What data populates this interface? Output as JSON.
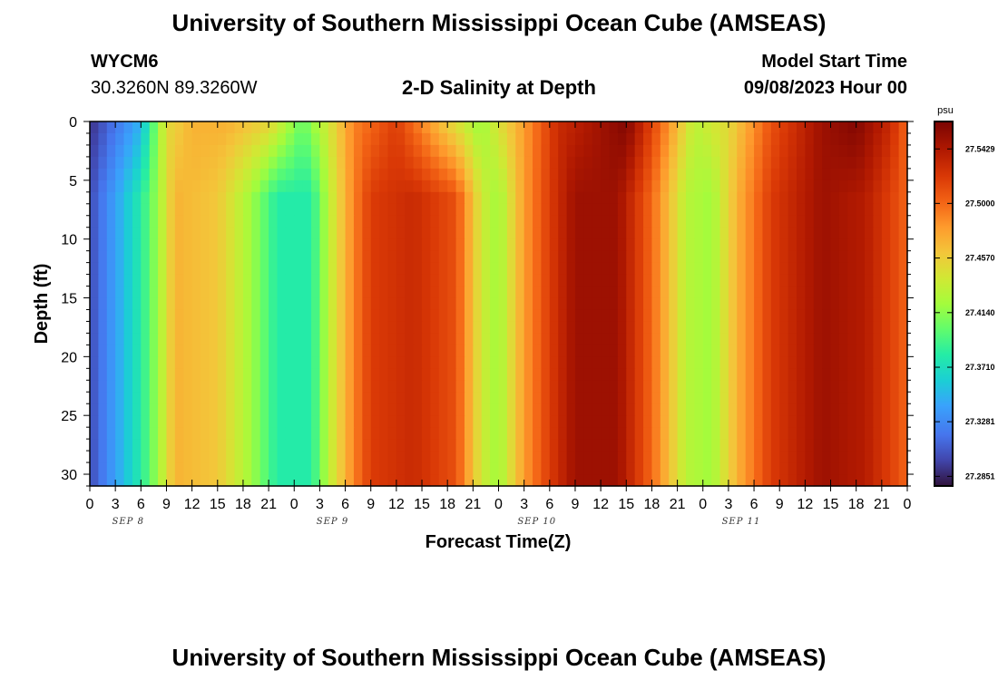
{
  "header": {
    "title": "University of Southern Mississippi Ocean Cube (AMSEAS)",
    "station_id": "WYCM6",
    "coordinates": "30.3260N  89.3260W",
    "model_start_label": "Model Start Time",
    "model_start_value": "09/08/2023 Hour 00"
  },
  "footer": {
    "title": "University of Southern Mississippi Ocean Cube (AMSEAS)"
  },
  "chart_data": {
    "type": "heatmap",
    "title": "2-D Salinity at Depth",
    "xlabel": "Forecast Time(Z)",
    "ylabel": "Depth (ft)",
    "x_ticks": [
      "0",
      "3",
      "6",
      "9",
      "12",
      "15",
      "18",
      "21",
      "0",
      "3",
      "6",
      "9",
      "12",
      "15",
      "18",
      "21",
      "0",
      "3",
      "6",
      "9",
      "12",
      "15",
      "18",
      "21",
      "0",
      "3",
      "6",
      "9",
      "12",
      "15",
      "18",
      "21",
      "0"
    ],
    "day_labels": [
      "SEP 8",
      "SEP 9",
      "SEP 10",
      "SEP 11"
    ],
    "xlim_hours": [
      0,
      96
    ],
    "y_ticks": [
      0,
      5,
      10,
      15,
      20,
      25,
      30
    ],
    "ylim": [
      0,
      31
    ],
    "y_inverted": true,
    "colorbar": {
      "unit": "psu",
      "tick_labels": [
        "27.5429",
        "27.5000",
        "27.4570",
        "27.4140",
        "27.3710",
        "27.3281",
        "27.2851"
      ],
      "range": [
        27.2775,
        27.5645
      ]
    },
    "surface_profile": [
      {
        "hour": 0,
        "value": 27.29
      },
      {
        "hour": 6,
        "value": 27.35
      },
      {
        "hour": 9,
        "value": 27.45
      },
      {
        "hour": 12,
        "value": 27.47
      },
      {
        "hour": 16,
        "value": 27.47
      },
      {
        "hour": 21,
        "value": 27.45
      },
      {
        "hour": 25,
        "value": 27.4
      },
      {
        "hour": 28,
        "value": 27.44
      },
      {
        "hour": 31,
        "value": 27.49
      },
      {
        "hour": 36,
        "value": 27.52
      },
      {
        "hour": 42,
        "value": 27.46
      },
      {
        "hour": 46,
        "value": 27.42
      },
      {
        "hour": 51,
        "value": 27.48
      },
      {
        "hour": 55,
        "value": 27.53
      },
      {
        "hour": 63,
        "value": 27.56
      },
      {
        "hour": 67,
        "value": 27.5
      },
      {
        "hour": 71,
        "value": 27.43
      },
      {
        "hour": 75,
        "value": 27.45
      },
      {
        "hour": 80,
        "value": 27.51
      },
      {
        "hour": 86,
        "value": 27.55
      },
      {
        "hour": 90,
        "value": 27.56
      },
      {
        "hour": 94,
        "value": 27.53
      },
      {
        "hour": 96,
        "value": 27.5
      }
    ],
    "deep_profile": [
      {
        "hour": 0,
        "value": 27.3
      },
      {
        "hour": 3,
        "value": 27.34
      },
      {
        "hour": 6,
        "value": 27.38
      },
      {
        "hour": 8,
        "value": 27.42
      },
      {
        "hour": 10,
        "value": 27.47
      },
      {
        "hour": 15,
        "value": 27.46
      },
      {
        "hour": 19,
        "value": 27.42
      },
      {
        "hour": 22,
        "value": 27.38
      },
      {
        "hour": 26,
        "value": 27.38
      },
      {
        "hour": 28,
        "value": 27.43
      },
      {
        "hour": 31,
        "value": 27.49
      },
      {
        "hour": 33,
        "value": 27.52
      },
      {
        "hour": 38,
        "value": 27.53
      },
      {
        "hour": 43,
        "value": 27.51
      },
      {
        "hour": 46,
        "value": 27.44
      },
      {
        "hour": 48,
        "value": 27.42
      },
      {
        "hour": 51,
        "value": 27.48
      },
      {
        "hour": 54,
        "value": 27.52
      },
      {
        "hour": 57,
        "value": 27.55
      },
      {
        "hour": 62,
        "value": 27.55
      },
      {
        "hour": 66,
        "value": 27.5
      },
      {
        "hour": 70,
        "value": 27.43
      },
      {
        "hour": 73,
        "value": 27.42
      },
      {
        "hour": 76,
        "value": 27.47
      },
      {
        "hour": 80,
        "value": 27.52
      },
      {
        "hour": 86,
        "value": 27.55
      },
      {
        "hour": 91,
        "value": 27.54
      },
      {
        "hour": 95,
        "value": 27.51
      },
      {
        "hour": 96,
        "value": 27.5
      }
    ]
  }
}
